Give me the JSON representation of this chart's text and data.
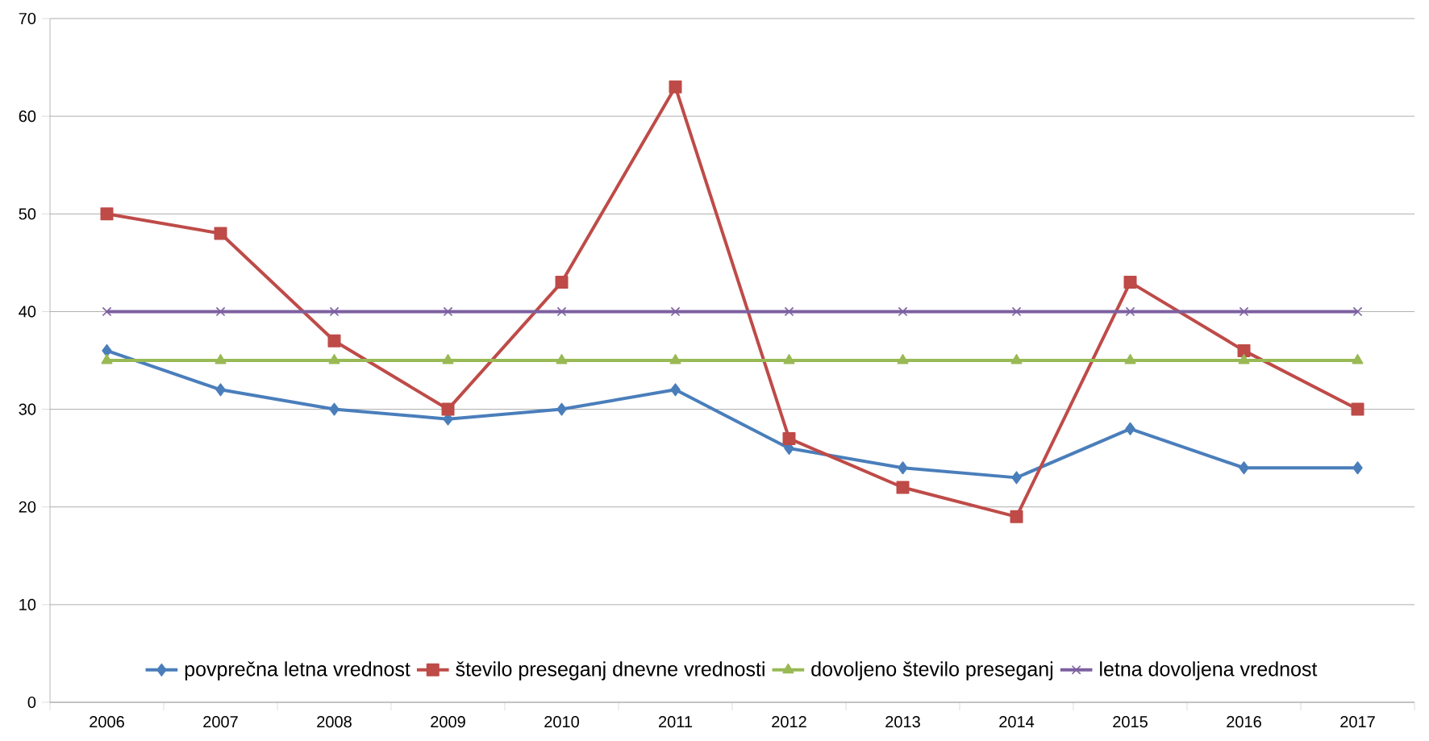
{
  "chart_data": {
    "type": "line",
    "categories": [
      "2006",
      "2007",
      "2008",
      "2009",
      "2010",
      "2011",
      "2012",
      "2013",
      "2014",
      "2015",
      "2016",
      "2017"
    ],
    "series": [
      {
        "name": "povprečna letna vrednost",
        "color": "#4a7ebb",
        "marker": "diamond",
        "values": [
          36,
          32,
          30,
          29,
          30,
          32,
          26,
          24,
          23,
          28,
          24,
          24
        ]
      },
      {
        "name": "število preseganj dnevne vrednosti",
        "color": "#be4b48",
        "marker": "square",
        "values": [
          50,
          48,
          37,
          30,
          43,
          63,
          27,
          22,
          19,
          43,
          36,
          30
        ]
      },
      {
        "name": "dovoljeno število preseganj",
        "color": "#98b954",
        "marker": "triangle",
        "values": [
          35,
          35,
          35,
          35,
          35,
          35,
          35,
          35,
          35,
          35,
          35,
          35
        ]
      },
      {
        "name": "letna dovoljena vrednost",
        "color": "#7d60a0",
        "marker": "cross",
        "values": [
          40,
          40,
          40,
          40,
          40,
          40,
          40,
          40,
          40,
          40,
          40,
          40
        ]
      }
    ],
    "ylim": [
      0,
      70
    ],
    "yticks": [
      0,
      10,
      20,
      30,
      40,
      50,
      60,
      70
    ],
    "grid": "y",
    "legend": "bottom",
    "line_style": "solid"
  }
}
